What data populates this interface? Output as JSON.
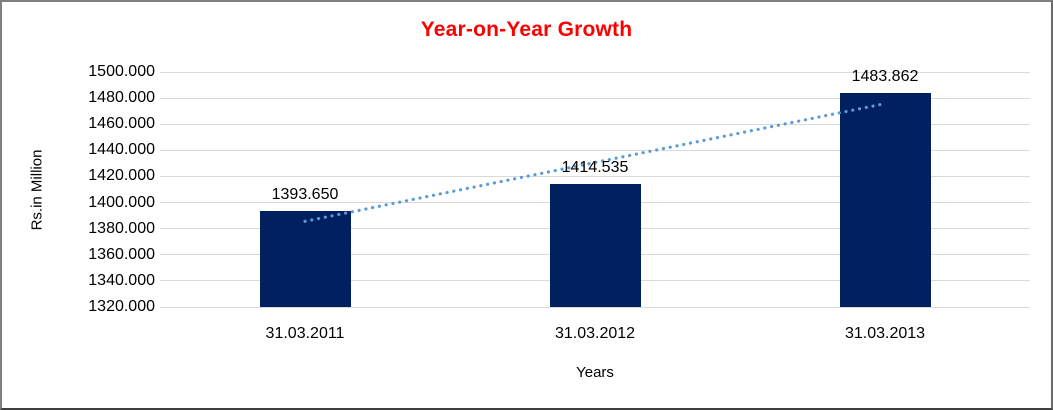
{
  "window": {
    "background": "#FFFFFF",
    "border_color": "#808080"
  },
  "chart_data": {
    "type": "bar",
    "title": "Year-on-Year Growth",
    "title_color": "#FF0000",
    "xlabel": "Years",
    "ylabel": "Rs.in Million",
    "categories": [
      "31.03.2011",
      "31.03.2012",
      "31.03.2013"
    ],
    "series": [
      {
        "values": [
          1393.65,
          1414.535,
          1483.862
        ],
        "labels": [
          "1393.650",
          "1414.535",
          "1483.862"
        ],
        "color": "#002060"
      }
    ],
    "ylim": [
      1320,
      1500
    ],
    "ytick_step": 20,
    "ytick_labels": [
      "1500.000",
      "1480.000",
      "1460.000",
      "1440.000",
      "1420.000",
      "1400.000",
      "1380.000",
      "1360.000",
      "1340.000",
      "1320.000"
    ],
    "grid": "horizontal",
    "gridline_color": "#D9D9D9",
    "legend": "none",
    "text_color": "#000000",
    "trendline": {
      "style": "dotted",
      "color": "#5B9BD5",
      "start_value": 1385.6,
      "end_value": 1475.8
    }
  }
}
